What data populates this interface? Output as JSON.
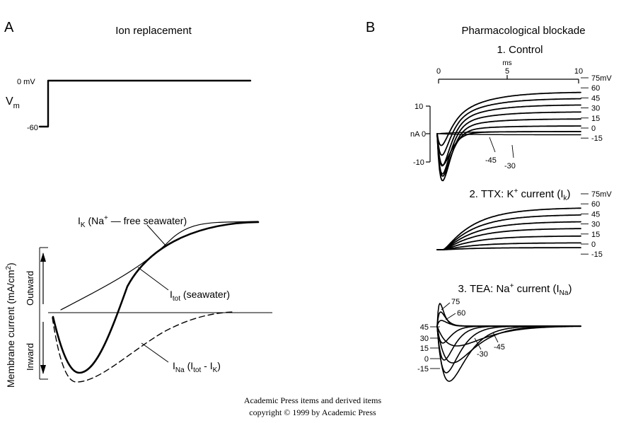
{
  "panel_a": {
    "letter": "A",
    "title": "Ion replacement",
    "vm_label": "V",
    "vm_sub": "m",
    "v_hold": "0 mV",
    "v_start": "-60",
    "ylabel": "Membrane current (mA/cm",
    "ylabel_sup": "2",
    "ylabel_end": ")",
    "outward": "Outward",
    "inward": "Inward",
    "ik_label": {
      "main": "I",
      "sub": "K",
      "rest": " (Na",
      "sup": "+",
      "tail": " — free seawater)"
    },
    "itot_label": {
      "main": "I",
      "sub": "tot",
      "rest": " (seawater)"
    },
    "ina_label": {
      "main": "I",
      "sub": "Na",
      "rest": " (I",
      "sub2": "tot",
      "dash": " - I",
      "sub3": "K",
      "end": ")"
    }
  },
  "panel_b": {
    "letter": "B",
    "title": "Pharmacological blockade",
    "control": {
      "title": "1. Control",
      "time_unit": "ms",
      "time_ticks": [
        "0",
        "5",
        "10"
      ],
      "current_ticks": [
        "10",
        "0",
        "-10"
      ],
      "current_unit": "nA",
      "voltage_labels": [
        "75mV",
        "60",
        "45",
        "30",
        "15",
        "0",
        "-15"
      ],
      "inner_labels": [
        "-45",
        "-30"
      ]
    },
    "ttx": {
      "title_main": "2. TTX: K",
      "title_sup": "+",
      "title_mid": " current (I",
      "title_sub": "k",
      "title_end": ")",
      "voltage_labels": [
        "75mV",
        "60",
        "45",
        "30",
        "15",
        "0",
        "-15"
      ]
    },
    "tea": {
      "title_main": "3. TEA: Na",
      "title_sup": "+",
      "title_mid": " current (I",
      "title_sub": "Na",
      "title_end": ")",
      "voltage_labels": [
        "75",
        "60",
        "45",
        "30",
        "15",
        "0",
        "-15"
      ],
      "inner_labels": [
        "-45",
        "-30"
      ]
    }
  },
  "copyright": {
    "line1": "Academic Press items and derived items",
    "line2": "copyright © 1999 by Academic Press"
  },
  "chart_data": [
    {
      "type": "line",
      "title": "Ion replacement",
      "ylabel": "Membrane current (mA/cm2)",
      "series": [
        {
          "name": "IK (Na+ — free seawater)"
        },
        {
          "name": "Itot (seawater)"
        },
        {
          "name": "INa (Itot - IK)"
        }
      ]
    },
    {
      "type": "line",
      "title": "1. Control",
      "xlabel": "ms",
      "ylabel": "nA",
      "xlim": [
        0,
        10
      ],
      "ylim": [
        -10,
        10
      ],
      "series_labels": [
        "75mV",
        "60",
        "45",
        "30",
        "15",
        "0",
        "-15",
        "-30",
        "-45"
      ]
    },
    {
      "type": "line",
      "title": "2. TTX: K+ current (Ik)",
      "series_labels": [
        "75mV",
        "60",
        "45",
        "30",
        "15",
        "0",
        "-15"
      ]
    },
    {
      "type": "line",
      "title": "3. TEA: Na+ current (INa)",
      "series_labels": [
        "75",
        "60",
        "45",
        "30",
        "15",
        "0",
        "-15",
        "-30",
        "-45"
      ]
    }
  ]
}
